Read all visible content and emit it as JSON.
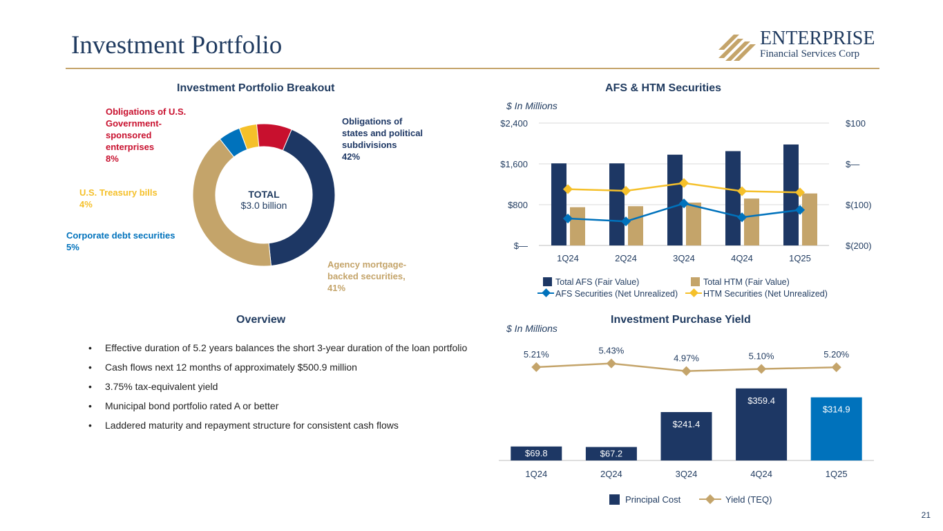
{
  "title": "Investment Portfolio",
  "logo": {
    "line1": "ENTERPRISE",
    "line2": "Financial Services Corp"
  },
  "page_number": "21",
  "colors": {
    "navy": "#1d3764",
    "gold": "#c4a46a",
    "crimson": "#c8102e",
    "yellow": "#f5c02a",
    "blue": "#0072bc"
  },
  "breakout": {
    "title": "Investment Portfolio Breakout",
    "center_line1": "TOTAL",
    "center_line2": "$3.0 billion",
    "labels": {
      "obligations_states": [
        "Obligations of",
        "states and political",
        "subdivisions",
        "42%"
      ],
      "agency_mbs": [
        "Agency mortgage-",
        "backed securities,",
        "41%"
      ],
      "corporate": [
        "Corporate debt securities",
        "5%"
      ],
      "treasury": [
        "U.S. Treasury bills",
        "4%"
      ],
      "gse": [
        "Obligations of U.S.",
        "Government-",
        "sponsored",
        "enterprises",
        "8%"
      ]
    }
  },
  "afs_htm": {
    "title": "AFS & HTM Securities",
    "units": "$ In Millions",
    "legend": [
      "Total AFS (Fair Value)",
      "Total HTM (Fair Value)",
      "AFS Securities (Net Unrealized)",
      "HTM Securities (Net Unrealized)"
    ]
  },
  "overview": {
    "title": "Overview",
    "bullets": [
      "Effective duration of 5.2 years balances the short 3-year duration of the loan portfolio",
      "Cash flows next 12 months of approximately $500.9 million",
      "3.75% tax-equivalent yield",
      "Municipal bond portfolio rated A or better",
      "Laddered maturity and repayment structure for consistent cash flows"
    ]
  },
  "purchase_yield": {
    "title": "Investment Purchase Yield",
    "units": "$ In Millions",
    "legend": [
      "Principal Cost",
      "Yield (TEQ)"
    ]
  },
  "chart_data": [
    {
      "type": "pie",
      "title": "Investment Portfolio Breakout",
      "categories": [
        "Obligations of states and political subdivisions",
        "Agency mortgage-backed securities",
        "Corporate debt securities",
        "U.S. Treasury bills",
        "Obligations of U.S. Government-sponsored enterprises"
      ],
      "values": [
        42,
        41,
        5,
        4,
        8
      ],
      "colors": [
        "#1d3764",
        "#c4a46a",
        "#0072bc",
        "#f5c02a",
        "#c8102e"
      ]
    },
    {
      "type": "bar",
      "title": "AFS & HTM Securities",
      "categories": [
        "1Q24",
        "2Q24",
        "3Q24",
        "4Q24",
        "1Q25"
      ],
      "series": [
        {
          "name": "Total AFS (Fair Value)",
          "values": [
            1610,
            1610,
            1780,
            1850,
            1980
          ],
          "axis": "left"
        },
        {
          "name": "Total HTM (Fair Value)",
          "values": [
            750,
            770,
            840,
            920,
            1020
          ],
          "axis": "left"
        },
        {
          "name": "AFS Securities (Net Unrealized)",
          "values": [
            -134,
            -141,
            -97,
            -131,
            -113
          ],
          "axis": "right",
          "kind": "line"
        },
        {
          "name": "HTM Securities (Net Unrealized)",
          "values": [
            -62,
            -66,
            -47,
            -67,
            -70
          ],
          "axis": "right",
          "kind": "line"
        }
      ],
      "ylim": [
        0,
        2400
      ],
      "yticks": [
        "$—",
        "$800",
        "$1,600",
        "$2,400"
      ],
      "y2lim": [
        -200,
        100
      ],
      "y2ticks": [
        "$(200)",
        "$(100)",
        "$—",
        "$100"
      ]
    },
    {
      "type": "bar",
      "title": "Investment Purchase Yield",
      "categories": [
        "1Q24",
        "2Q24",
        "3Q24",
        "4Q24",
        "1Q25"
      ],
      "series": [
        {
          "name": "Principal Cost",
          "values": [
            69.8,
            67.2,
            241.4,
            359.4,
            314.9
          ],
          "labels": [
            "$69.8",
            "$67.2",
            "$241.4",
            "$359.4",
            "$314.9"
          ]
        },
        {
          "name": "Yield (TEQ)",
          "values": [
            5.21,
            5.43,
            4.97,
            5.1,
            5.2
          ],
          "labels": [
            "5.21%",
            "5.43%",
            "4.97%",
            "5.10%",
            "5.20%"
          ],
          "kind": "line"
        }
      ],
      "ylim": [
        0,
        400
      ]
    }
  ]
}
